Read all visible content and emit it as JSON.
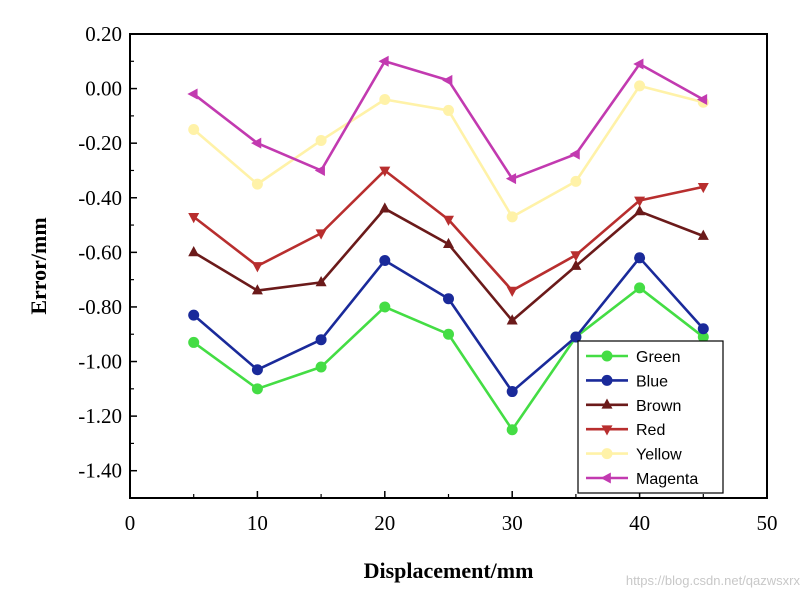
{
  "chart_data": {
    "type": "line",
    "title": "",
    "xlabel": "Displacement/mm",
    "ylabel": "Error/mm",
    "xlim": [
      0,
      50
    ],
    "ylim": [
      -1.5,
      0.2
    ],
    "x_ticks": [
      "0",
      "10",
      "20",
      "30",
      "40",
      "50"
    ],
    "y_ticks": [
      "0.20",
      "0.00",
      "-0.20",
      "-0.40",
      "-0.60",
      "-0.80",
      "-1.00",
      "-1.20",
      "-1.40"
    ],
    "grid": false,
    "legend_position": "bottom-right",
    "x": [
      5,
      10,
      15,
      20,
      25,
      30,
      35,
      40,
      45
    ],
    "series": [
      {
        "name": "Green",
        "color": "#44dd44",
        "marker": "circle",
        "values": [
          -0.93,
          -1.1,
          -1.02,
          -0.8,
          -0.9,
          -1.25,
          -0.91,
          -0.73,
          -0.91
        ]
      },
      {
        "name": "Blue",
        "color": "#1a2a9a",
        "marker": "circle",
        "values": [
          -0.83,
          -1.03,
          -0.92,
          -0.63,
          -0.77,
          -1.11,
          -0.91,
          -0.62,
          -0.88
        ]
      },
      {
        "name": "Brown",
        "color": "#6b1a1a",
        "marker": "triangle-up",
        "values": [
          -0.6,
          -0.74,
          -0.71,
          -0.44,
          -0.57,
          -0.85,
          -0.65,
          -0.45,
          -0.54
        ]
      },
      {
        "name": "Red",
        "color": "#b82e2e",
        "marker": "triangle-down",
        "values": [
          -0.47,
          -0.65,
          -0.53,
          -0.3,
          -0.48,
          -0.74,
          -0.61,
          -0.41,
          -0.36
        ]
      },
      {
        "name": "Yellow",
        "color": "#fff2a8",
        "marker": "circle",
        "values": [
          -0.15,
          -0.35,
          -0.19,
          -0.04,
          -0.08,
          -0.47,
          -0.34,
          0.01,
          -0.05
        ]
      },
      {
        "name": "Magenta",
        "color": "#c23ab0",
        "marker": "triangle-left",
        "values": [
          -0.02,
          -0.2,
          -0.3,
          0.1,
          0.03,
          -0.33,
          -0.24,
          0.09,
          -0.04
        ]
      }
    ]
  },
  "watermark": {
    "text": "https://blog.csdn.net/qazwsxrx",
    "color": "#c8c8c8"
  }
}
